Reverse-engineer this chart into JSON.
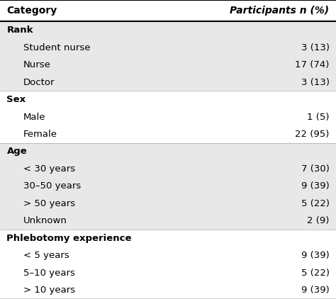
{
  "header": [
    "Category",
    "Participants n (%)"
  ],
  "rows": [
    {
      "type": "section",
      "label": "Rank",
      "value": "",
      "bg": "#e8e8e8"
    },
    {
      "type": "item",
      "label": "Student nurse",
      "value": "3 (13)",
      "bg": "#e8e8e8"
    },
    {
      "type": "item",
      "label": "Nurse",
      "value": "17 (74)",
      "bg": "#e8e8e8"
    },
    {
      "type": "item",
      "label": "Doctor",
      "value": "3 (13)",
      "bg": "#e8e8e8"
    },
    {
      "type": "section",
      "label": "Sex",
      "value": "",
      "bg": "#ffffff"
    },
    {
      "type": "item",
      "label": "Male",
      "value": "1 (5)",
      "bg": "#ffffff"
    },
    {
      "type": "item",
      "label": "Female",
      "value": "22 (95)",
      "bg": "#ffffff"
    },
    {
      "type": "section",
      "label": "Age",
      "value": "",
      "bg": "#e8e8e8"
    },
    {
      "type": "item",
      "label": "< 30 years",
      "value": "7 (30)",
      "bg": "#e8e8e8"
    },
    {
      "type": "item",
      "label": "30–50 years",
      "value": "9 (39)",
      "bg": "#e8e8e8"
    },
    {
      "type": "item",
      "label": "> 50 years",
      "value": "5 (22)",
      "bg": "#e8e8e8"
    },
    {
      "type": "item",
      "label": "Unknown",
      "value": "2 (9)",
      "bg": "#e8e8e8"
    },
    {
      "type": "section",
      "label": "Phlebotomy experience",
      "value": "",
      "bg": "#ffffff"
    },
    {
      "type": "item",
      "label": "< 5 years",
      "value": "9 (39)",
      "bg": "#ffffff"
    },
    {
      "type": "item",
      "label": "5–10 years",
      "value": "5 (22)",
      "bg": "#ffffff"
    },
    {
      "type": "item",
      "label": "> 10 years",
      "value": "9 (39)",
      "bg": "#ffffff"
    }
  ],
  "header_bg": "#ffffff",
  "header_line_color": "#000000",
  "text_color": "#000000",
  "section_font_size": 9.5,
  "item_font_size": 9.5,
  "header_font_size": 10
}
